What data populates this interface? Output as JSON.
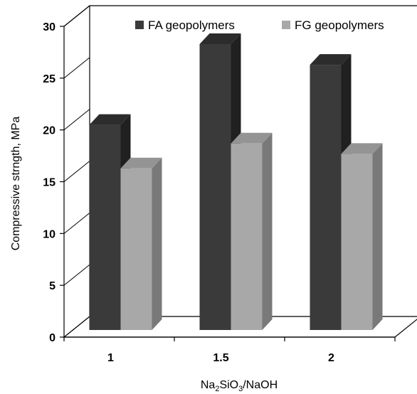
{
  "chart_data": {
    "type": "bar",
    "categories": [
      "1",
      "1.5",
      "2"
    ],
    "series": [
      {
        "name": "FA geopolymers",
        "values": [
          19.8,
          27.6,
          25.6
        ],
        "color": "#3a3a3a"
      },
      {
        "name": "FG geopolymers",
        "values": [
          15.6,
          18.0,
          17.0
        ],
        "color": "#a8a8a8"
      }
    ],
    "y_ticks": [
      "0",
      "5",
      "10",
      "15",
      "20",
      "25",
      "30"
    ],
    "ylim": [
      0,
      30
    ],
    "ylabel": "Compressive strngth, MPa",
    "xlabel": {
      "base": "Na",
      "sub1": "2",
      "mid": "SiO",
      "sub2": "3",
      "tail": "/NaOH"
    },
    "legend_position": "top",
    "style": "3d-clustered-column",
    "grid": false
  }
}
